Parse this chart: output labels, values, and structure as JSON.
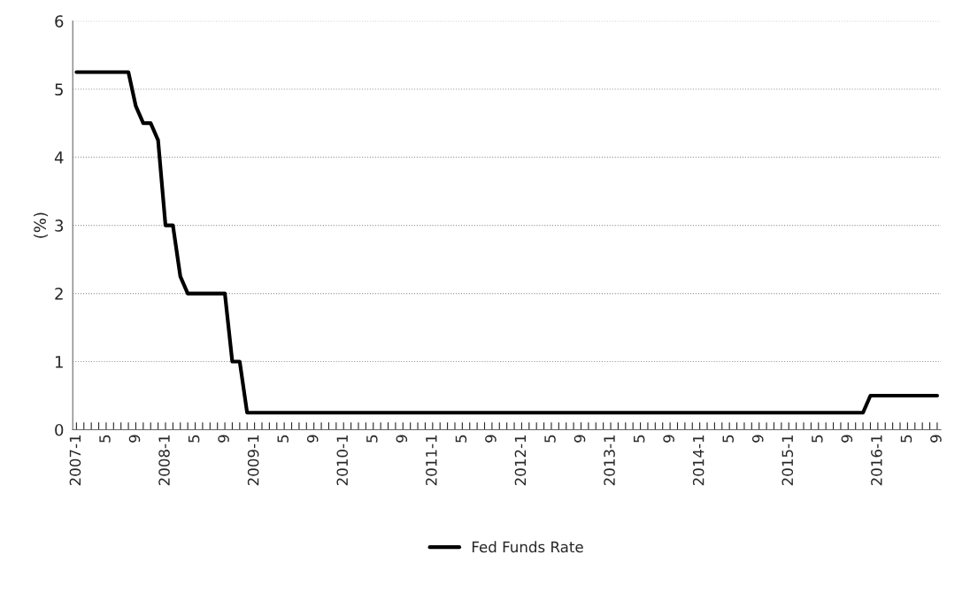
{
  "chart_data": {
    "type": "line",
    "ylabel": "(%)",
    "categories": [
      "2007-1",
      null,
      null,
      null,
      "5",
      null,
      null,
      null,
      "9",
      null,
      null,
      null,
      "2008-1",
      null,
      null,
      null,
      "5",
      null,
      null,
      null,
      "9",
      null,
      null,
      null,
      "2009-1",
      null,
      null,
      null,
      "5",
      null,
      null,
      null,
      "9",
      null,
      null,
      null,
      "2010-1",
      null,
      null,
      null,
      "5",
      null,
      null,
      null,
      "9",
      null,
      null,
      null,
      "2011-1",
      null,
      null,
      null,
      "5",
      null,
      null,
      null,
      "9",
      null,
      null,
      null,
      "2012-1",
      null,
      null,
      null,
      "5",
      null,
      null,
      null,
      "9",
      null,
      null,
      null,
      "2013-1",
      null,
      null,
      null,
      "5",
      null,
      null,
      null,
      "9",
      null,
      null,
      null,
      "2014-1",
      null,
      null,
      null,
      "5",
      null,
      null,
      null,
      "9",
      null,
      null,
      null,
      "2015-1",
      null,
      null,
      null,
      "5",
      null,
      null,
      null,
      "9",
      null,
      null,
      null,
      "2016-1",
      null,
      null,
      null,
      "5",
      null,
      null,
      null,
      "9"
    ],
    "series": [
      {
        "name": "Fed Funds Rate",
        "color": "#000000",
        "values": [
          5.25,
          5.25,
          5.25,
          5.25,
          5.25,
          5.25,
          5.25,
          5.25,
          4.75,
          4.5,
          4.5,
          4.25,
          3.0,
          3.0,
          2.25,
          2.0,
          2.0,
          2.0,
          2.0,
          2.0,
          2.0,
          1.0,
          1.0,
          0.25,
          0.25,
          0.25,
          0.25,
          0.25,
          0.25,
          0.25,
          0.25,
          0.25,
          0.25,
          0.25,
          0.25,
          0.25,
          0.25,
          0.25,
          0.25,
          0.25,
          0.25,
          0.25,
          0.25,
          0.25,
          0.25,
          0.25,
          0.25,
          0.25,
          0.25,
          0.25,
          0.25,
          0.25,
          0.25,
          0.25,
          0.25,
          0.25,
          0.25,
          0.25,
          0.25,
          0.25,
          0.25,
          0.25,
          0.25,
          0.25,
          0.25,
          0.25,
          0.25,
          0.25,
          0.25,
          0.25,
          0.25,
          0.25,
          0.25,
          0.25,
          0.25,
          0.25,
          0.25,
          0.25,
          0.25,
          0.25,
          0.25,
          0.25,
          0.25,
          0.25,
          0.25,
          0.25,
          0.25,
          0.25,
          0.25,
          0.25,
          0.25,
          0.25,
          0.25,
          0.25,
          0.25,
          0.25,
          0.25,
          0.25,
          0.25,
          0.25,
          0.25,
          0.25,
          0.25,
          0.25,
          0.25,
          0.25,
          0.25,
          0.5,
          0.5,
          0.5,
          0.5,
          0.5,
          0.5,
          0.5,
          0.5,
          0.5,
          0.5
        ]
      }
    ],
    "ylim": [
      0,
      6
    ],
    "yticks": [
      0,
      1,
      2,
      3,
      4,
      5,
      6
    ],
    "grid": "y",
    "legend": "bottom",
    "marker": "none",
    "line_style": "solid"
  }
}
